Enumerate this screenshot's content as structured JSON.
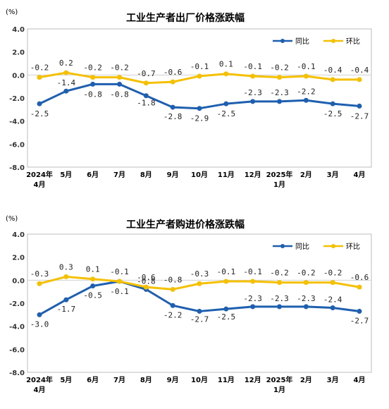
{
  "chart_data": [
    {
      "type": "line",
      "title": "工业生产者出厂价格涨跌幅",
      "unit": "(%)",
      "categories": [
        "2024年\n4月",
        "5月",
        "6月",
        "7月",
        "8月",
        "9月",
        "10月",
        "11月",
        "12月",
        "2025年\n1月",
        "2月",
        "3月",
        "4月"
      ],
      "ylim": [
        -8.0,
        4.0
      ],
      "yticks": [
        "4.0",
        "2.0",
        "0.0",
        "-2.0",
        "-4.0",
        "-6.0",
        "-8.0"
      ],
      "grid": false,
      "legend_position": "top-right",
      "series": [
        {
          "name": "同比",
          "color": "#1f5fb0",
          "values": [
            -2.5,
            -1.4,
            -0.8,
            -0.8,
            -1.8,
            -2.8,
            -2.9,
            -2.5,
            -2.3,
            -2.3,
            -2.2,
            -2.5,
            -2.7
          ],
          "labels": [
            "-2.5",
            "-1.4",
            "-0.8",
            "-0.8",
            "-1.8",
            "-2.8",
            "-2.9",
            "-2.5",
            "-2.3",
            "-2.3",
            "-2.2",
            "-2.5",
            "-2.7"
          ]
        },
        {
          "name": "环比",
          "color": "#f5c000",
          "values": [
            -0.2,
            0.2,
            -0.2,
            -0.2,
            -0.7,
            -0.6,
            -0.1,
            0.1,
            -0.1,
            -0.2,
            -0.1,
            -0.4,
            -0.4
          ],
          "labels": [
            "-0.2",
            "0.2",
            "-0.2",
            "-0.2",
            "-0.7",
            "-0.6",
            "-0.1",
            "0.1",
            "-0.1",
            "-0.2",
            "-0.1",
            "-0.4",
            "-0.4"
          ]
        }
      ]
    },
    {
      "type": "line",
      "title": "工业生产者购进价格涨跌幅",
      "unit": "(%)",
      "categories": [
        "2024年\n4月",
        "5月",
        "6月",
        "7月",
        "8月",
        "9月",
        "10月",
        "11月",
        "12月",
        "2025年\n1月",
        "2月",
        "3月",
        "4月"
      ],
      "ylim": [
        -8.0,
        4.0
      ],
      "yticks": [
        "4.0",
        "2.0",
        "0.0",
        "-2.0",
        "-4.0",
        "-6.0",
        "-8.0"
      ],
      "grid": false,
      "legend_position": "top-right",
      "series": [
        {
          "name": "同比",
          "color": "#1f5fb0",
          "values": [
            -3.0,
            -1.7,
            -0.5,
            -0.1,
            -0.8,
            -2.2,
            -2.7,
            -2.5,
            -2.3,
            -2.3,
            -2.3,
            -2.4,
            -2.7
          ],
          "labels": [
            "-3.0",
            "-1.7",
            "-0.5",
            "-0.1",
            "-0.8",
            "-2.2",
            "-2.7",
            "-2.5",
            "-2.3",
            "-2.3",
            "-2.3",
            "-2.4",
            "-2.7"
          ]
        },
        {
          "name": "环比",
          "color": "#f5c000",
          "values": [
            -0.3,
            0.3,
            0.1,
            -0.1,
            -0.6,
            -0.8,
            -0.3,
            -0.1,
            -0.1,
            -0.2,
            -0.2,
            -0.2,
            -0.6
          ],
          "labels": [
            "-0.3",
            "0.3",
            "0.1",
            "-0.1",
            "-0.6",
            "-0.8",
            "-0.3",
            "-0.1",
            "-0.1",
            "-0.2",
            "-0.2",
            "-0.2",
            "-0.6"
          ]
        }
      ]
    }
  ]
}
